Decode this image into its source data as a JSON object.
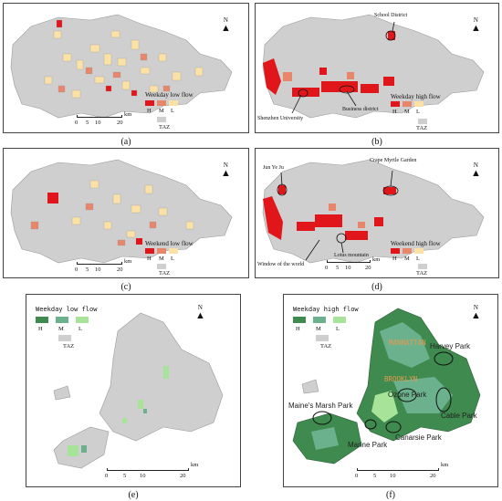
{
  "panels": {
    "a": {
      "caption": "(a)",
      "legend_title": "Weekday low flow",
      "legend_items": [
        "H",
        "M",
        "L"
      ],
      "taz": "TAZ",
      "scale_ticks": [
        "0",
        "5",
        "10",
        "20"
      ],
      "scale_unit": "km",
      "north": "N"
    },
    "b": {
      "caption": "(b)",
      "legend_title": "Weekday high flow",
      "legend_items": [
        "H",
        "M",
        "L"
      ],
      "taz": "TAZ",
      "scale_ticks": [
        "0",
        "5",
        "10",
        "20"
      ],
      "scale_unit": "km",
      "north": "N",
      "annotations": [
        "School District",
        "Shenzhen University",
        "Business district"
      ]
    },
    "c": {
      "caption": "(c)",
      "legend_title": "Weekend low flow",
      "legend_items": [
        "H",
        "M",
        "L"
      ],
      "taz": "TAZ",
      "scale_ticks": [
        "0",
        "5",
        "10",
        "20"
      ],
      "scale_unit": "km",
      "north": "N"
    },
    "d": {
      "caption": "(d)",
      "legend_title": "Weekend high flow",
      "legend_items": [
        "H",
        "M",
        "L"
      ],
      "taz": "TAZ",
      "scale_ticks": [
        "0",
        "5",
        "10",
        "20"
      ],
      "scale_unit": "km",
      "north": "N",
      "annotations": [
        "Jun Ye Ju",
        "Crape Myrtle Garden",
        "Lotus mountain",
        "Window of the world"
      ]
    },
    "e": {
      "caption": "(e)",
      "legend_title": "Weekday low flow",
      "legend_items": [
        "H",
        "M",
        "L"
      ],
      "taz": "TAZ",
      "scale_ticks": [
        "0",
        "5",
        "10",
        "20"
      ],
      "scale_unit": "km",
      "north": "N"
    },
    "f": {
      "caption": "(f)",
      "legend_title": "Weekday high flow",
      "legend_items": [
        "H",
        "M",
        "L"
      ],
      "taz": "TAZ",
      "scale_ticks": [
        "0",
        "5",
        "10",
        "20"
      ],
      "scale_unit": "km",
      "north": "N",
      "annotations": [
        "MANHATTAN",
        "BROOKLYN",
        "Harvey Park",
        "Ozone Park",
        "Maine's Marsh Park",
        "Cable Park",
        "Marine Park",
        "Canarsie Park"
      ]
    }
  },
  "colors": {
    "sz_H": "#e0161b",
    "sz_M": "#e8866b",
    "sz_L": "#fbe1a6",
    "ny_H": "#3f8a4e",
    "ny_M": "#6cb18d",
    "ny_L": "#a8e39a",
    "taz": "#cfcfcf",
    "taz_stroke": "#9a9a9a",
    "annot_orange": "#e79a4f"
  }
}
